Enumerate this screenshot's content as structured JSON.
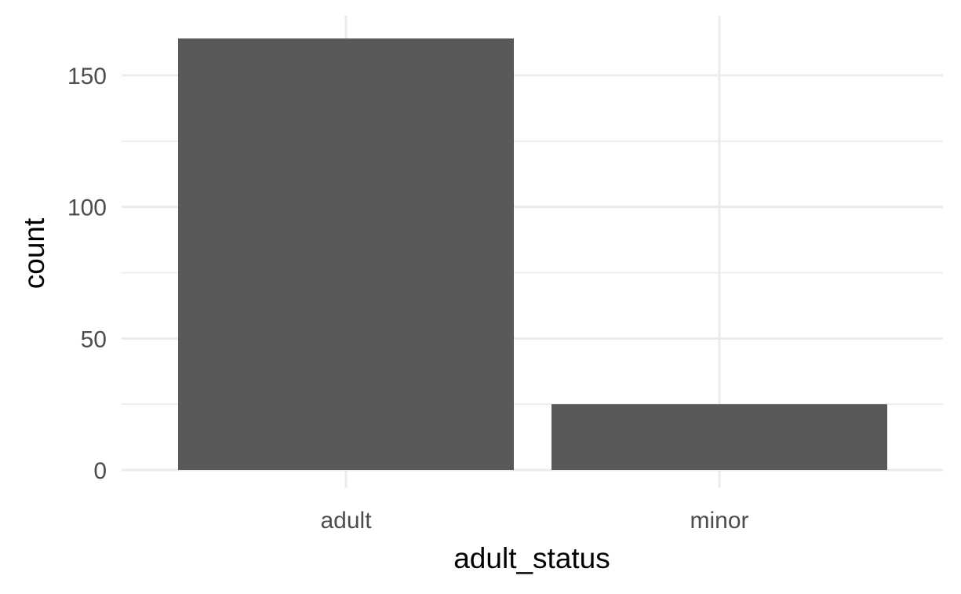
{
  "chart_data": {
    "type": "bar",
    "categories": [
      "adult",
      "minor"
    ],
    "values": [
      164,
      25
    ],
    "xlabel": "adult_status",
    "ylabel": "count",
    "ylim": [
      0,
      164
    ],
    "y_ticks": [
      0,
      50,
      100,
      150
    ],
    "y_minor_ticks": [
      25,
      75,
      125
    ],
    "grid": true,
    "theme": "minimal",
    "bar_color": "#595959",
    "grid_color": "#ebebeb",
    "tick_label_color": "#4d4d4d"
  }
}
